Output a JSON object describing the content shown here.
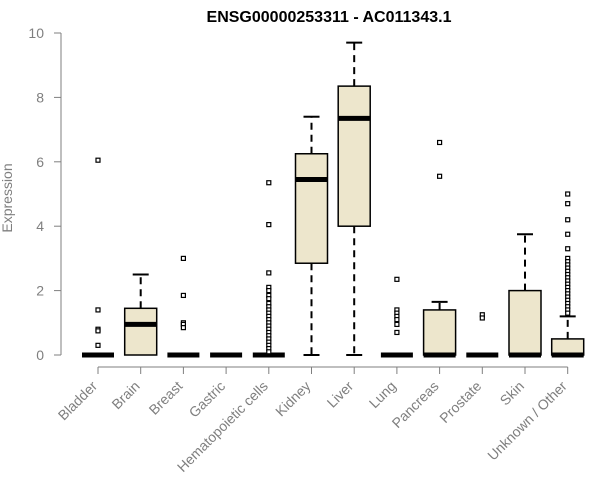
{
  "chart_data": {
    "type": "box",
    "title": "ENSG00000253311 - AC011343.1",
    "xlabel": "",
    "ylabel": "Expression",
    "ylim": [
      0,
      10
    ],
    "yticks": [
      0,
      2,
      4,
      6,
      8,
      10
    ],
    "grid": false,
    "legend": "none",
    "categories": [
      "Bladder",
      "Brain",
      "Breast",
      "Gastric",
      "Hematopoietic cells",
      "Kidney",
      "Liver",
      "Lung",
      "Pancreas",
      "Prostate",
      "Skin",
      "Unknown / Other"
    ],
    "box_fill": "#ede6cc",
    "boxes": [
      {
        "category": "Bladder",
        "q1": 0,
        "median": 0,
        "q3": 0,
        "whisker_low": 0,
        "whisker_high": 0,
        "outliers": [
          6.05,
          1.4,
          0.8,
          0.75,
          0.3
        ]
      },
      {
        "category": "Brain",
        "q1": 0,
        "median": 0.95,
        "q3": 1.45,
        "whisker_low": 0,
        "whisker_high": 2.5,
        "outliers": []
      },
      {
        "category": "Breast",
        "q1": 0,
        "median": 0,
        "q3": 0,
        "whisker_low": 0,
        "whisker_high": 0,
        "outliers": [
          3.0,
          1.85,
          1.0,
          0.95,
          0.85
        ]
      },
      {
        "category": "Gastric",
        "q1": 0,
        "median": 0,
        "q3": 0,
        "whisker_low": 0,
        "whisker_high": 0,
        "outliers": []
      },
      {
        "category": "Hematopoietic cells",
        "q1": 0,
        "median": 0,
        "q3": 0,
        "whisker_low": 0,
        "whisker_high": 0,
        "outliers": [
          5.35,
          4.05,
          2.55,
          2.1,
          2.0,
          1.85,
          1.75,
          1.6,
          1.5,
          1.4,
          1.3,
          1.2,
          1.1,
          1.0,
          0.9,
          0.8,
          0.7,
          0.6,
          0.5,
          0.4,
          0.3,
          0.2,
          0.1
        ]
      },
      {
        "category": "Kidney",
        "q1": 2.85,
        "median": 5.45,
        "q3": 6.25,
        "whisker_low": 0,
        "whisker_high": 7.4,
        "outliers": []
      },
      {
        "category": "Liver",
        "q1": 4.0,
        "median": 7.35,
        "q3": 8.35,
        "whisker_low": 0,
        "whisker_high": 9.7,
        "outliers": []
      },
      {
        "category": "Lung",
        "q1": 0,
        "median": 0,
        "q3": 0,
        "whisker_low": 0,
        "whisker_high": 0,
        "outliers": [
          2.35,
          1.4,
          1.3,
          1.2,
          1.1,
          0.95,
          0.7
        ]
      },
      {
        "category": "Pancreas",
        "q1": 0,
        "median": 0,
        "q3": 1.4,
        "whisker_low": 0,
        "whisker_high": 1.65,
        "outliers": [
          6.6,
          5.55
        ]
      },
      {
        "category": "Prostate",
        "q1": 0,
        "median": 0,
        "q3": 0,
        "whisker_low": 0,
        "whisker_high": 0,
        "outliers": [
          1.25,
          1.15
        ]
      },
      {
        "category": "Skin",
        "q1": 0,
        "median": 0,
        "q3": 2.0,
        "whisker_low": 0,
        "whisker_high": 3.75,
        "outliers": []
      },
      {
        "category": "Unknown / Other",
        "q1": 0,
        "median": 0,
        "q3": 0.5,
        "whisker_low": 0,
        "whisker_high": 1.2,
        "outliers": [
          5.0,
          4.7,
          4.2,
          3.75,
          3.3,
          3.0,
          2.9,
          2.8,
          2.7,
          2.6,
          2.5,
          2.4,
          2.3,
          2.2,
          2.1,
          2.0,
          1.9,
          1.8,
          1.7,
          1.6,
          1.5,
          1.4,
          1.3
        ]
      }
    ]
  }
}
